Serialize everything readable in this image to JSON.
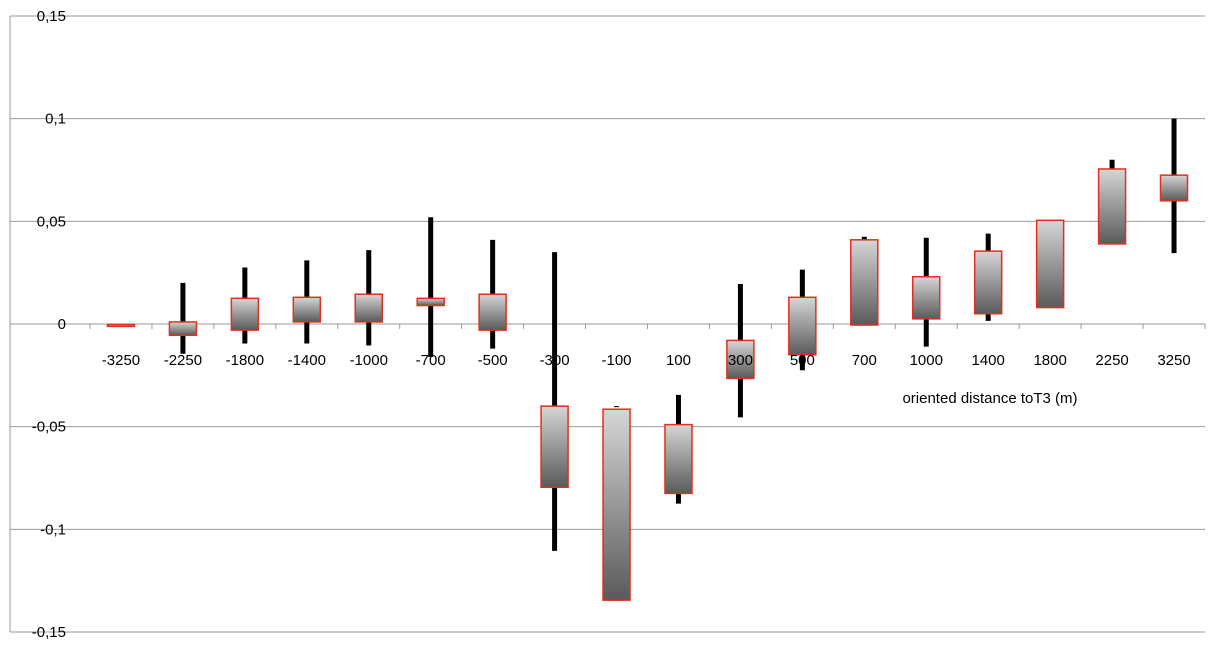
{
  "chart_data": {
    "type": "box",
    "xlabel": "oriented distance toT3 (m)",
    "ylabel": "",
    "ylim": [
      -0.15,
      0.15
    ],
    "yticks": [
      0.15,
      0.1,
      0.05,
      0,
      -0.05,
      -0.1,
      -0.15
    ],
    "ytick_labels": [
      "0,15",
      "0,1",
      "0,05",
      "0",
      "-0,05",
      "-0,1",
      "-0,15"
    ],
    "grid": true,
    "categories": [
      "-3250",
      "-2250",
      "-1800",
      "-1400",
      "-1000",
      "-700",
      "-500",
      "-300",
      "-100",
      "100",
      "300",
      "500",
      "700",
      "1000",
      "1400",
      "1800",
      "2250",
      "3250"
    ],
    "box_bottom": [
      -0.0008,
      -0.0055,
      -0.003,
      0.001,
      0.001,
      0.009,
      -0.003,
      -0.0795,
      -0.1345,
      -0.0825,
      -0.0265,
      -0.015,
      -0.0005,
      0.0025,
      0.005,
      0.008,
      0.039,
      0.06
    ],
    "box_top": [
      -0.0002,
      0.001,
      0.0125,
      0.013,
      0.0145,
      0.0125,
      0.0145,
      -0.04,
      -0.0415,
      -0.049,
      -0.008,
      0.013,
      0.041,
      0.023,
      0.0355,
      0.0505,
      0.0755,
      0.0725
    ],
    "whisker_low": [
      null,
      -0.0145,
      -0.0095,
      -0.0095,
      -0.0105,
      -0.016,
      -0.012,
      -0.1105,
      -0.0405,
      -0.0875,
      -0.0455,
      -0.0225,
      null,
      -0.011,
      0.0015,
      null,
      null,
      0.0345
    ],
    "whisker_high": [
      null,
      0.02,
      0.0275,
      0.031,
      0.036,
      0.052,
      0.041,
      0.035,
      -0.04,
      -0.0345,
      0.0195,
      0.0265,
      0.0425,
      0.042,
      0.044,
      null,
      0.08,
      0.1
    ],
    "colors": {
      "box_fill_light": "#d6d6d6",
      "box_fill_dark": "#5a5a5a",
      "box_stroke": "#e0301e",
      "whisker": "#000000",
      "grid": "#9a9a9a",
      "axis": "#9a9a9a"
    }
  }
}
